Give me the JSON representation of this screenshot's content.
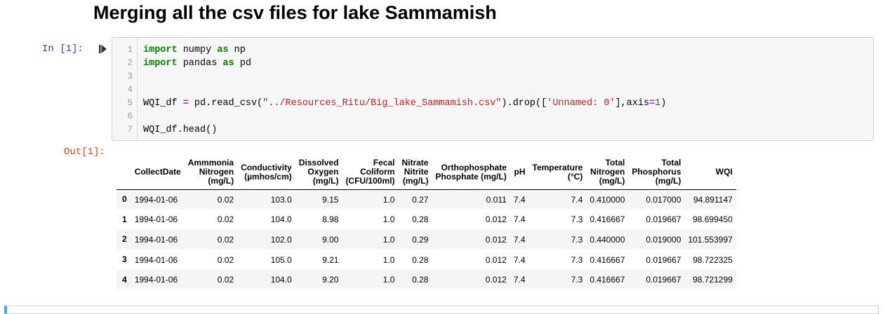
{
  "heading": "Merging all the csv files for lake Sammamish",
  "input_prompt": "In [1]:",
  "output_prompt": "Out[1]:",
  "colors": {
    "input_prompt": "#303f9f",
    "output_prompt": "#d84315",
    "keyword": "#008000",
    "operator": "#aa22ff",
    "string": "#ba2121",
    "cell_background": "#f7f7f7",
    "stripe": "#f5f5f5",
    "selected_cell_border": "#42a5f5"
  },
  "code": {
    "line_numbers": [
      "1",
      "2",
      "3",
      "4",
      "5",
      "6",
      "7"
    ],
    "l1": {
      "kw1": "import",
      "mod": " numpy ",
      "kw2": "as",
      "alias": " np"
    },
    "l2": {
      "kw1": "import",
      "mod": " pandas ",
      "kw2": "as",
      "alias": " pd"
    },
    "l5": {
      "var": "WQI_df ",
      "eq": "=",
      "call": " pd.read_csv(",
      "path": "\"../Resources_Ritu/Big_lake_Sammamish.csv\"",
      "drop": ").drop([",
      "col": "'Unnamed: 0'",
      "axis": "],axis",
      "eq2": "=",
      "one": "1",
      "close": ")"
    },
    "l7": "WQI_df.head()"
  },
  "table": {
    "columns": [
      [
        "CollectDate"
      ],
      [
        "Ammmonia",
        "Nitrogen",
        "(mg/L)"
      ],
      [
        "Conductivity",
        "(µmhos/cm)"
      ],
      [
        "Dissolved",
        "Oxygen",
        "(mg/L)"
      ],
      [
        "Fecal",
        "Coliform",
        "(CFU/100ml)"
      ],
      [
        "Nitrate",
        "Nitrite",
        "(mg/L)"
      ],
      [
        "Orthophosphate",
        "Phosphate (mg/L)"
      ],
      [
        "pH"
      ],
      [
        "Temperature",
        "(°C)"
      ],
      [
        "Total",
        "Nitrogen",
        "(mg/L)"
      ],
      [
        "Total",
        "Phosphorus",
        "(mg/L)"
      ],
      [
        "WQI"
      ]
    ],
    "rows": [
      {
        "index": "0",
        "cells": [
          "1994-01-06",
          "0.02",
          "103.0",
          "9.15",
          "1.0",
          "0.27",
          "0.011",
          "7.4",
          "7.4",
          "0.410000",
          "0.017000",
          "94.891147"
        ]
      },
      {
        "index": "1",
        "cells": [
          "1994-01-06",
          "0.02",
          "104.0",
          "8.98",
          "1.0",
          "0.28",
          "0.012",
          "7.4",
          "7.3",
          "0.416667",
          "0.019667",
          "98.699450"
        ]
      },
      {
        "index": "2",
        "cells": [
          "1994-01-06",
          "0.02",
          "102.0",
          "9.00",
          "1.0",
          "0.29",
          "0.012",
          "7.4",
          "7.3",
          "0.440000",
          "0.019000",
          "101.553997"
        ]
      },
      {
        "index": "3",
        "cells": [
          "1994-01-06",
          "0.02",
          "105.0",
          "9.21",
          "1.0",
          "0.28",
          "0.012",
          "7.4",
          "7.3",
          "0.416667",
          "0.019667",
          "98.722325"
        ]
      },
      {
        "index": "4",
        "cells": [
          "1994-01-06",
          "0.02",
          "104.0",
          "9.20",
          "1.0",
          "0.28",
          "0.012",
          "7.4",
          "7.3",
          "0.416667",
          "0.019667",
          "98.721299"
        ]
      }
    ]
  }
}
